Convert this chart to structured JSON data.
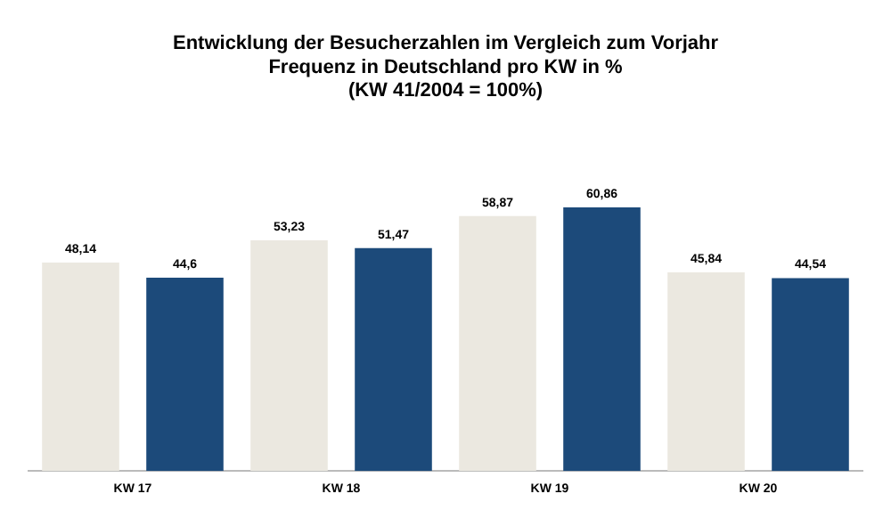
{
  "chart_data": {
    "type": "bar",
    "title": "Entwicklung der Besucherzahlen im Vergleich zum Vorjahr\nFrequenz in Deutschland pro KW in %\n(KW 41/2004 = 100%)",
    "categories": [
      "KW 17",
      "KW 18",
      "KW 19",
      "KW 20"
    ],
    "series": [
      {
        "color": "#ebe8e0",
        "values": [
          48.14,
          53.23,
          58.87,
          45.84
        ],
        "value_labels": [
          "48,14",
          "53,23",
          "58,87",
          "45,84"
        ]
      },
      {
        "color": "#1c4a7a",
        "values": [
          44.6,
          51.47,
          60.86,
          44.54
        ],
        "value_labels": [
          "44,6",
          "51,47",
          "60,86",
          "44,54"
        ]
      }
    ],
    "grid": false,
    "legend": false
  }
}
